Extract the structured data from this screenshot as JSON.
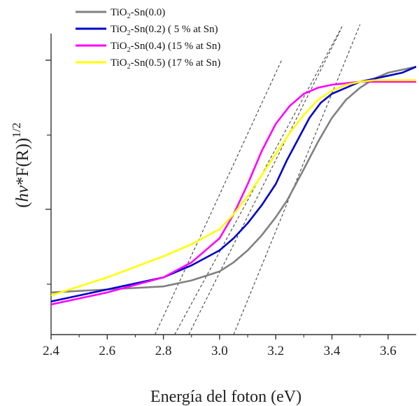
{
  "chart_data": {
    "type": "line",
    "xlabel": "Energía del foton (eV)",
    "ylabel": "(hν*F(R))^1/2",
    "ylabel_parts": {
      "open": "(",
      "italic": "hν",
      "rest": "*F(R))",
      "exp": "1/2"
    },
    "xlim": [
      2.4,
      3.7
    ],
    "ylim": [
      0,
      1
    ],
    "xticks": [
      "2.4",
      "2.6",
      "2.8",
      "3.0",
      "3.2",
      "3.4",
      "3.6"
    ],
    "legend_position": "top-left",
    "series": [
      {
        "name": "TiO2-Sn(0.0)",
        "label_parts": [
          "TiO",
          "2",
          "-Sn(0.0)"
        ],
        "color": "#808080",
        "x": [
          2.4,
          2.6,
          2.8,
          2.9,
          3.0,
          3.05,
          3.1,
          3.15,
          3.2,
          3.24,
          3.26,
          3.3,
          3.35,
          3.4,
          3.45,
          3.5,
          3.55,
          3.6,
          3.65,
          3.7
        ],
        "y": [
          0.14,
          0.15,
          0.16,
          0.18,
          0.21,
          0.24,
          0.28,
          0.33,
          0.39,
          0.445,
          0.48,
          0.55,
          0.64,
          0.72,
          0.78,
          0.82,
          0.85,
          0.87,
          0.88,
          0.89
        ]
      },
      {
        "name": "TiO2-Sn(0.2) ( 5 % at Sn)",
        "label_parts": [
          "TiO",
          "2",
          "-Sn(0.2)  ( 5 % at Sn)"
        ],
        "color": "#0000cc",
        "x": [
          2.4,
          2.6,
          2.8,
          2.9,
          3.0,
          3.05,
          3.1,
          3.15,
          3.2,
          3.24,
          3.28,
          3.32,
          3.36,
          3.4,
          3.45,
          3.5,
          3.55,
          3.6,
          3.65,
          3.7
        ],
        "y": [
          0.11,
          0.15,
          0.19,
          0.23,
          0.28,
          0.32,
          0.37,
          0.43,
          0.5,
          0.58,
          0.65,
          0.72,
          0.77,
          0.8,
          0.82,
          0.84,
          0.85,
          0.86,
          0.87,
          0.89
        ]
      },
      {
        "name": "TiO2-Sn(0.4) (15 % at Sn)",
        "label_parts": [
          "TiO",
          "2",
          "-Sn(0.4)  (15 % at Sn)"
        ],
        "color": "#ff00ff",
        "x": [
          2.4,
          2.6,
          2.8,
          2.9,
          3.0,
          3.05,
          3.1,
          3.15,
          3.2,
          3.25,
          3.3,
          3.35,
          3.4,
          3.45,
          3.5,
          3.55,
          3.6,
          3.65,
          3.7
        ],
        "y": [
          0.1,
          0.14,
          0.19,
          0.24,
          0.32,
          0.4,
          0.5,
          0.61,
          0.7,
          0.76,
          0.8,
          0.82,
          0.83,
          0.835,
          0.84,
          0.84,
          0.84,
          0.84,
          0.84
        ]
      },
      {
        "name": "TiO2-Sn(0.5) (17 % at Sn)",
        "label_parts": [
          "TiO",
          "2",
          "-Sn(0.5)  (17 % at Sn)"
        ],
        "color": "#ffff00",
        "x": [
          2.4,
          2.6,
          2.8,
          2.9,
          3.0,
          3.05,
          3.1,
          3.15,
          3.2,
          3.25,
          3.3,
          3.35,
          3.4,
          3.45,
          3.5,
          3.55,
          3.6,
          3.65,
          3.7
        ],
        "y": [
          0.13,
          0.19,
          0.26,
          0.3,
          0.35,
          0.4,
          0.46,
          0.53,
          0.6,
          0.67,
          0.73,
          0.78,
          0.81,
          0.83,
          0.84,
          0.845,
          0.845,
          0.845,
          0.845
        ]
      }
    ],
    "tangent_lines": [
      {
        "x": [
          2.77,
          3.22
        ],
        "y": [
          0.0,
          0.91
        ]
      },
      {
        "x": [
          2.84,
          3.44
        ],
        "y": [
          0.0,
          1.03
        ]
      },
      {
        "x": [
          2.89,
          3.43
        ],
        "y": [
          0.0,
          1.01
        ]
      },
      {
        "x": [
          3.05,
          3.5
        ],
        "y": [
          0.0,
          1.03
        ]
      }
    ]
  }
}
